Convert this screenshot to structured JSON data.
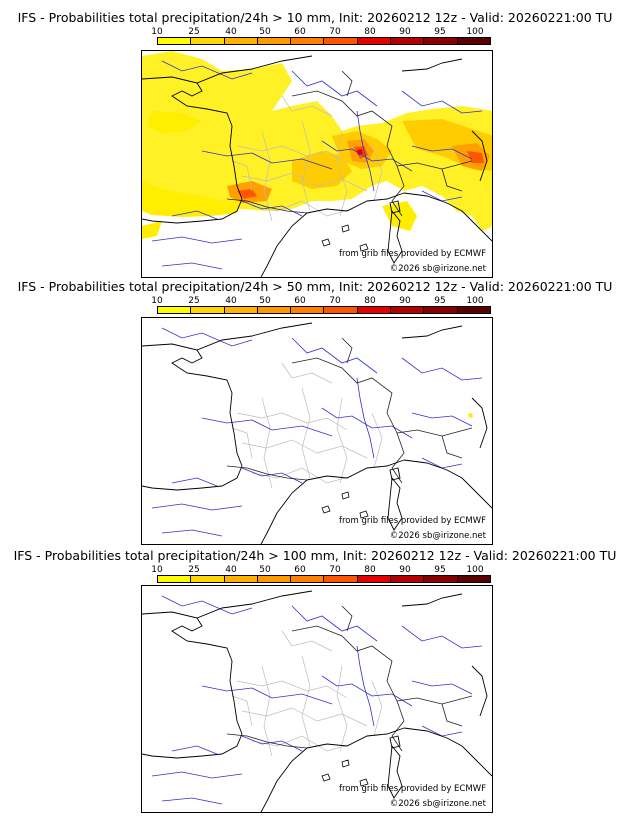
{
  "scale": {
    "labels": [
      "10",
      "25",
      "40",
      "50",
      "60",
      "70",
      "80",
      "90",
      "95",
      "100"
    ],
    "colors": [
      "#ffff00",
      "#ffd700",
      "#ffb300",
      "#ff9900",
      "#ff7f00",
      "#ff5500",
      "#e60000",
      "#b40000",
      "#8a0000",
      "#5a0000"
    ]
  },
  "panels": [
    {
      "title": "IFS - Probabilities total precipitation/24h > 10 mm, Init: 20260212 12z - Valid: 20260221:00 TU",
      "credit": "from grib files provided by ECMWF",
      "copyright": "©2026 sb@irizone.net"
    },
    {
      "title": "IFS - Probabilities total precipitation/24h > 50 mm, Init: 20260212 12z - Valid: 20260221:00 TU",
      "credit": "from grib files provided by ECMWF",
      "copyright": "©2026 sb@irizone.net"
    },
    {
      "title": "IFS - Probabilities total precipitation/24h > 100 mm, Init: 20260212 12z - Valid: 20260221:00 TU",
      "credit": "from grib files provided by ECMWF",
      "copyright": "©2026 sb@irizone.net"
    }
  ]
}
